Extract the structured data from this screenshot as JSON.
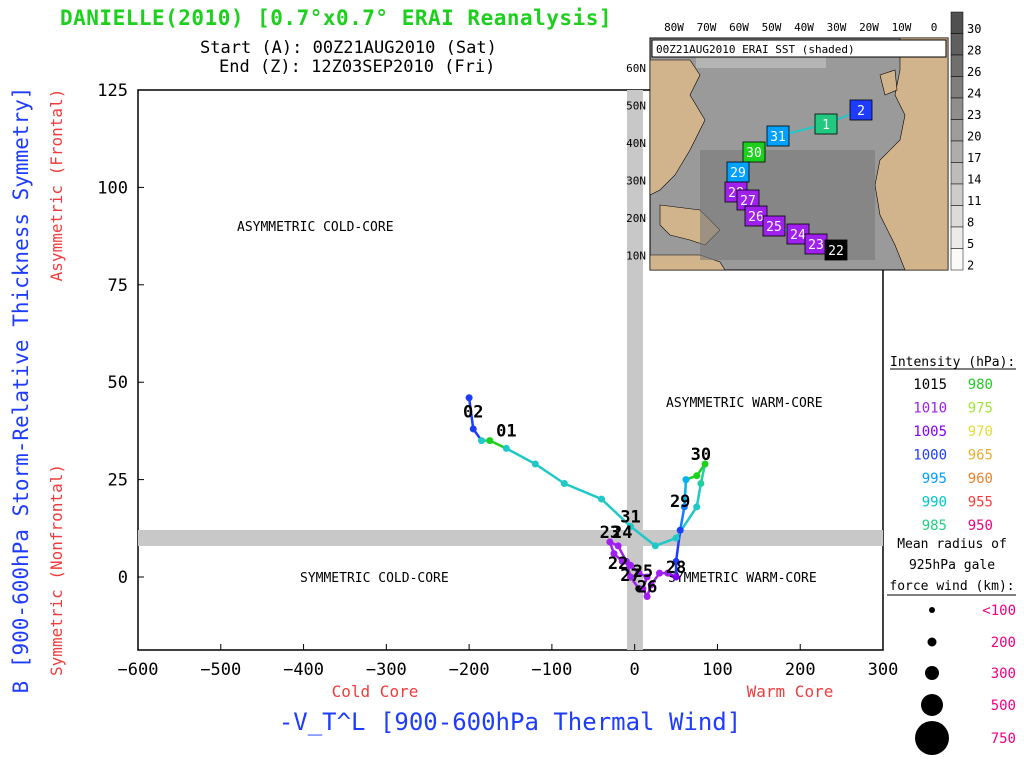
{
  "header": {
    "title": "DANIELLE(2010) [0.7°x0.7° ERAI Reanalysis]",
    "start": "Start (A): 00Z21AUG2010 (Sat)",
    "end": "End (Z): 12Z03SEP2010 (Fri)"
  },
  "chart_data": {
    "type": "line",
    "xlabel": "-V_T^L [900-600hPa Thermal Wind]",
    "ylabel": "B [900-600hPa Storm-Relative Thickness Symmetry]",
    "x_left_label": "Cold Core",
    "x_right_label": "Warm Core",
    "y_top_label": "Asymmetric (Frontal)",
    "y_bottom_label": "Symmetric (Nonfrontal)",
    "xlim": [
      -600,
      300
    ],
    "ylim": [
      -20,
      125
    ],
    "xticks": [
      -600,
      -500,
      -400,
      -300,
      -200,
      -100,
      0,
      100,
      200,
      300
    ],
    "yticks": [
      0,
      25,
      50,
      75,
      100,
      125
    ],
    "quadrants": {
      "asym_cold": "ASYMMETRIC COLD-CORE",
      "asym_warm": "ASYMMETRIC WARM-CORE",
      "sym_cold": "SYMMETRIC COLD-CORE",
      "sym_warm": "SYMMETRIC WARM-CORE"
    },
    "track": [
      {
        "x": 5,
        "y": -3,
        "c": "#000000"
      },
      {
        "x": -5,
        "y": 0,
        "c": "#a020f0"
      },
      {
        "x": -10,
        "y": 4,
        "c": "#a020f0"
      },
      {
        "x": -20,
        "y": 8,
        "c": "#a020f0"
      },
      {
        "x": -30,
        "y": 9,
        "c": "#a020f0"
      },
      {
        "x": -25,
        "y": 6,
        "c": "#a020f0"
      },
      {
        "x": -15,
        "y": 4,
        "c": "#a020f0"
      },
      {
        "x": -5,
        "y": 3,
        "c": "#a020f0"
      },
      {
        "x": 5,
        "y": 1,
        "c": "#a020f0"
      },
      {
        "x": 15,
        "y": 0,
        "c": "#a020f0"
      },
      {
        "x": 10,
        "y": -3,
        "c": "#a020f0"
      },
      {
        "x": 15,
        "y": -5,
        "c": "#a020f0"
      },
      {
        "x": 20,
        "y": -2,
        "c": "#a020f0"
      },
      {
        "x": 30,
        "y": 1,
        "c": "#a020f0"
      },
      {
        "x": 40,
        "y": 1,
        "c": "#a020f0"
      },
      {
        "x": 50,
        "y": 0,
        "c": "#8000ff"
      },
      {
        "x": 50,
        "y": 4,
        "c": "#1e3cff"
      },
      {
        "x": 55,
        "y": 12,
        "c": "#1e3cff"
      },
      {
        "x": 60,
        "y": 18,
        "c": "#1e78ff"
      },
      {
        "x": 62,
        "y": 25,
        "c": "#00b4f0"
      },
      {
        "x": 75,
        "y": 26,
        "c": "#1ed01e"
      },
      {
        "x": 85,
        "y": 29,
        "c": "#1ed01e"
      },
      {
        "x": 80,
        "y": 24,
        "c": "#20d0a0"
      },
      {
        "x": 75,
        "y": 18,
        "c": "#20c8c8"
      },
      {
        "x": 50,
        "y": 10,
        "c": "#20c8c8"
      },
      {
        "x": 25,
        "y": 8,
        "c": "#20c8c8"
      },
      {
        "x": -5,
        "y": 13,
        "c": "#20c8c8"
      },
      {
        "x": -40,
        "y": 20,
        "c": "#20c8c8"
      },
      {
        "x": -85,
        "y": 24,
        "c": "#20c8c8"
      },
      {
        "x": -120,
        "y": 29,
        "c": "#20c8c8"
      },
      {
        "x": -155,
        "y": 33,
        "c": "#20c8c8"
      },
      {
        "x": -175,
        "y": 35,
        "c": "#1ed01e"
      },
      {
        "x": -185,
        "y": 35,
        "c": "#20c8c8"
      },
      {
        "x": -195,
        "y": 38,
        "c": "#1e3cff"
      },
      {
        "x": -200,
        "y": 46,
        "c": "#1e3cff"
      }
    ],
    "labels": [
      {
        "text": "01",
        "x": -155,
        "y": 36
      },
      {
        "text": "02",
        "x": -195,
        "y": 41
      },
      {
        "text": "31",
        "x": -5,
        "y": 14
      },
      {
        "text": "30",
        "x": 80,
        "y": 30
      },
      {
        "text": "29",
        "x": 55,
        "y": 18
      },
      {
        "text": "28",
        "x": 50,
        "y": 1
      },
      {
        "text": "23",
        "x": -30,
        "y": 10
      },
      {
        "text": "24",
        "x": -15,
        "y": 10
      },
      {
        "text": "22",
        "x": -20,
        "y": 2
      },
      {
        "text": "25",
        "x": 10,
        "y": 0
      },
      {
        "text": "27",
        "x": -5,
        "y": -1
      },
      {
        "text": "26",
        "x": 15,
        "y": -4
      }
    ]
  },
  "legend": {
    "intensity_title": "Intensity (hPa):",
    "intensity": [
      {
        "a": "1015",
        "ac": "#000000",
        "b": "980",
        "bc": "#1ed01e"
      },
      {
        "a": "1010",
        "ac": "#a020f0",
        "b": "975",
        "bc": "#a0e632"
      },
      {
        "a": "1005",
        "ac": "#8000ff",
        "b": "970",
        "bc": "#e6dc32"
      },
      {
        "a": "1000",
        "ac": "#1e3cff",
        "b": "965",
        "bc": "#e6af2d"
      },
      {
        "a": "995",
        "ac": "#00a0ff",
        "b": "960",
        "bc": "#f08228"
      },
      {
        "a": "990",
        "ac": "#00c8c8",
        "b": "955",
        "bc": "#fa3c3c"
      },
      {
        "a": "985",
        "ac": "#20d080",
        "b": "950",
        "bc": "#f00082"
      }
    ],
    "radius_title_1": "Mean radius of",
    "radius_title_2": "925hPa gale",
    "radius_title_3": "force wind (km):",
    "radii": [
      "<100",
      "200",
      "300",
      "500",
      "750"
    ],
    "radii_color": "#f00082"
  },
  "inset": {
    "label": "00Z21AUG2010 ERAI SST (shaded)",
    "lon_ticks": [
      "80W",
      "70W",
      "60W",
      "50W",
      "40W",
      "30W",
      "20W",
      "10W",
      "0"
    ],
    "lat_ticks": [
      "60N",
      "50N",
      "40N",
      "30N",
      "20N",
      "10N"
    ],
    "colorbar": [
      "30",
      "28",
      "26",
      "24",
      "23",
      "20",
      "17",
      "14",
      "11",
      "8",
      "5",
      "2"
    ],
    "track_boxes": [
      {
        "text": "2",
        "c": "#1e3cff"
      },
      {
        "text": "1",
        "c": "#20c880"
      },
      {
        "text": "31",
        "c": "#00a0ff"
      },
      {
        "text": "30",
        "c": "#1ed01e"
      },
      {
        "text": "29",
        "c": "#00a0ff"
      },
      {
        "text": "28",
        "c": "#a020f0"
      },
      {
        "text": "27",
        "c": "#a020f0"
      },
      {
        "text": "26",
        "c": "#a020f0"
      },
      {
        "text": "25",
        "c": "#a020f0"
      },
      {
        "text": "24",
        "c": "#a020f0"
      },
      {
        "text": "23",
        "c": "#a020f0"
      },
      {
        "text": "22",
        "c": "#000000"
      }
    ]
  }
}
